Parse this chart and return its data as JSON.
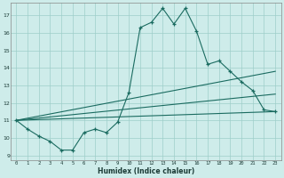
{
  "xlabel": "Humidex (Indice chaleur)",
  "background_color": "#ceecea",
  "grid_color": "#9ececa",
  "line_color": "#1a6b60",
  "series1_x": [
    0,
    1,
    2,
    3,
    4,
    5,
    6,
    7,
    8,
    9,
    10,
    11,
    12,
    13,
    14,
    15,
    16,
    17,
    18,
    19,
    20,
    21,
    22,
    23
  ],
  "series1_y": [
    11.0,
    10.5,
    10.1,
    9.8,
    9.3,
    9.3,
    10.3,
    10.5,
    10.3,
    10.9,
    12.6,
    16.3,
    16.6,
    17.4,
    16.5,
    17.4,
    16.1,
    14.2,
    14.4,
    13.8,
    13.2,
    12.7,
    11.6,
    11.5
  ],
  "trend1_x": [
    0,
    23
  ],
  "trend1_y": [
    11.0,
    13.8
  ],
  "trend2_x": [
    0,
    23
  ],
  "trend2_y": [
    11.0,
    12.5
  ],
  "trend3_x": [
    0,
    23
  ],
  "trend3_y": [
    11.0,
    11.5
  ],
  "xlim": [
    -0.5,
    23.5
  ],
  "ylim": [
    8.7,
    17.7
  ],
  "yticks": [
    9,
    10,
    11,
    12,
    13,
    14,
    15,
    16,
    17
  ],
  "xticks": [
    0,
    1,
    2,
    3,
    4,
    5,
    6,
    7,
    8,
    9,
    10,
    11,
    12,
    13,
    14,
    15,
    16,
    17,
    18,
    19,
    20,
    21,
    22,
    23
  ],
  "figsize": [
    3.2,
    2.0
  ],
  "dpi": 100
}
